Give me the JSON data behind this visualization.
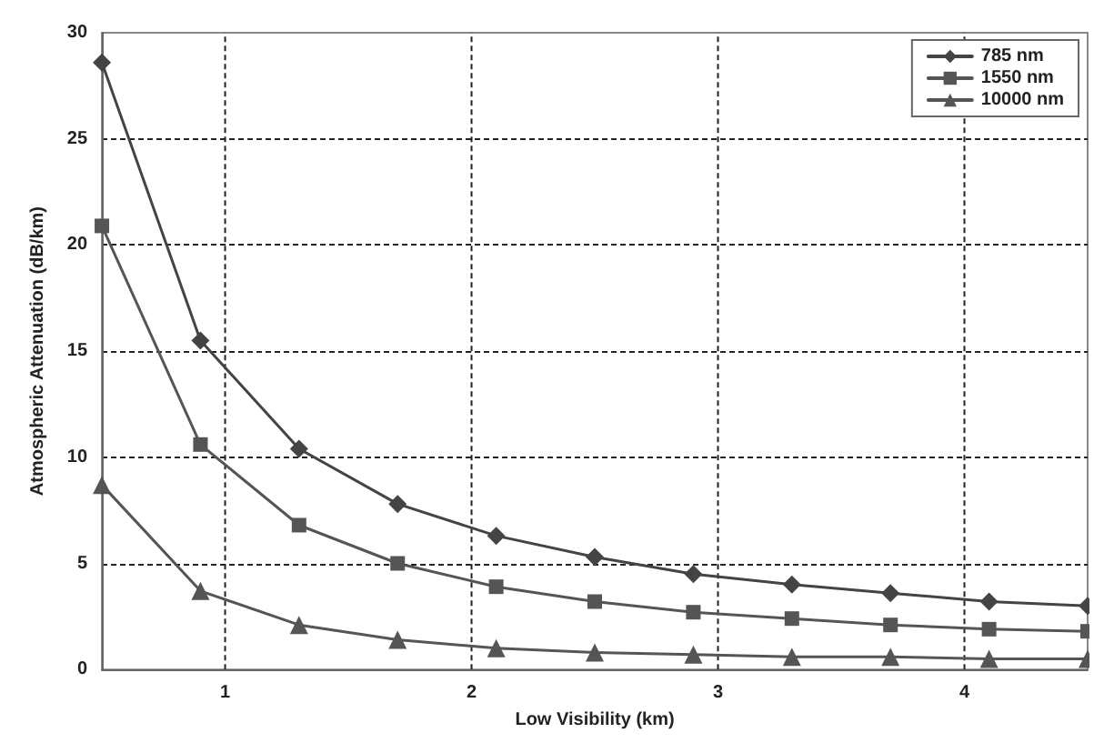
{
  "chart_data": {
    "type": "line",
    "xlabel": "Low Visibility (km)",
    "ylabel": "Atmospheric Attenuation (dB/km)",
    "x": [
      0.5,
      0.9,
      1.3,
      1.7,
      2.1,
      2.5,
      2.9,
      3.3,
      3.7,
      4.1,
      4.5
    ],
    "xlim": [
      0.5,
      4.5
    ],
    "xticks": [
      1,
      2,
      3,
      4
    ],
    "ylim": [
      0,
      30
    ],
    "yticks": [
      0,
      5,
      10,
      15,
      20,
      25,
      30
    ],
    "grid": true,
    "legend": "top right",
    "line_style": "solid",
    "series": [
      {
        "name": "785 nm",
        "color": "#444444",
        "marker": "diamond",
        "values": [
          28.6,
          15.5,
          10.4,
          7.8,
          6.3,
          5.3,
          4.5,
          4.0,
          3.6,
          3.2,
          3.0
        ]
      },
      {
        "name": "1550 nm",
        "color": "#555555",
        "marker": "square",
        "values": [
          20.9,
          10.6,
          6.8,
          5.0,
          3.9,
          3.2,
          2.7,
          2.4,
          2.1,
          1.9,
          1.8
        ]
      },
      {
        "name": "10000 nm",
        "color": "#555555",
        "marker": "triangle",
        "values": [
          8.7,
          3.7,
          2.1,
          1.4,
          1.0,
          0.8,
          0.7,
          0.6,
          0.6,
          0.5,
          0.5
        ]
      }
    ]
  }
}
